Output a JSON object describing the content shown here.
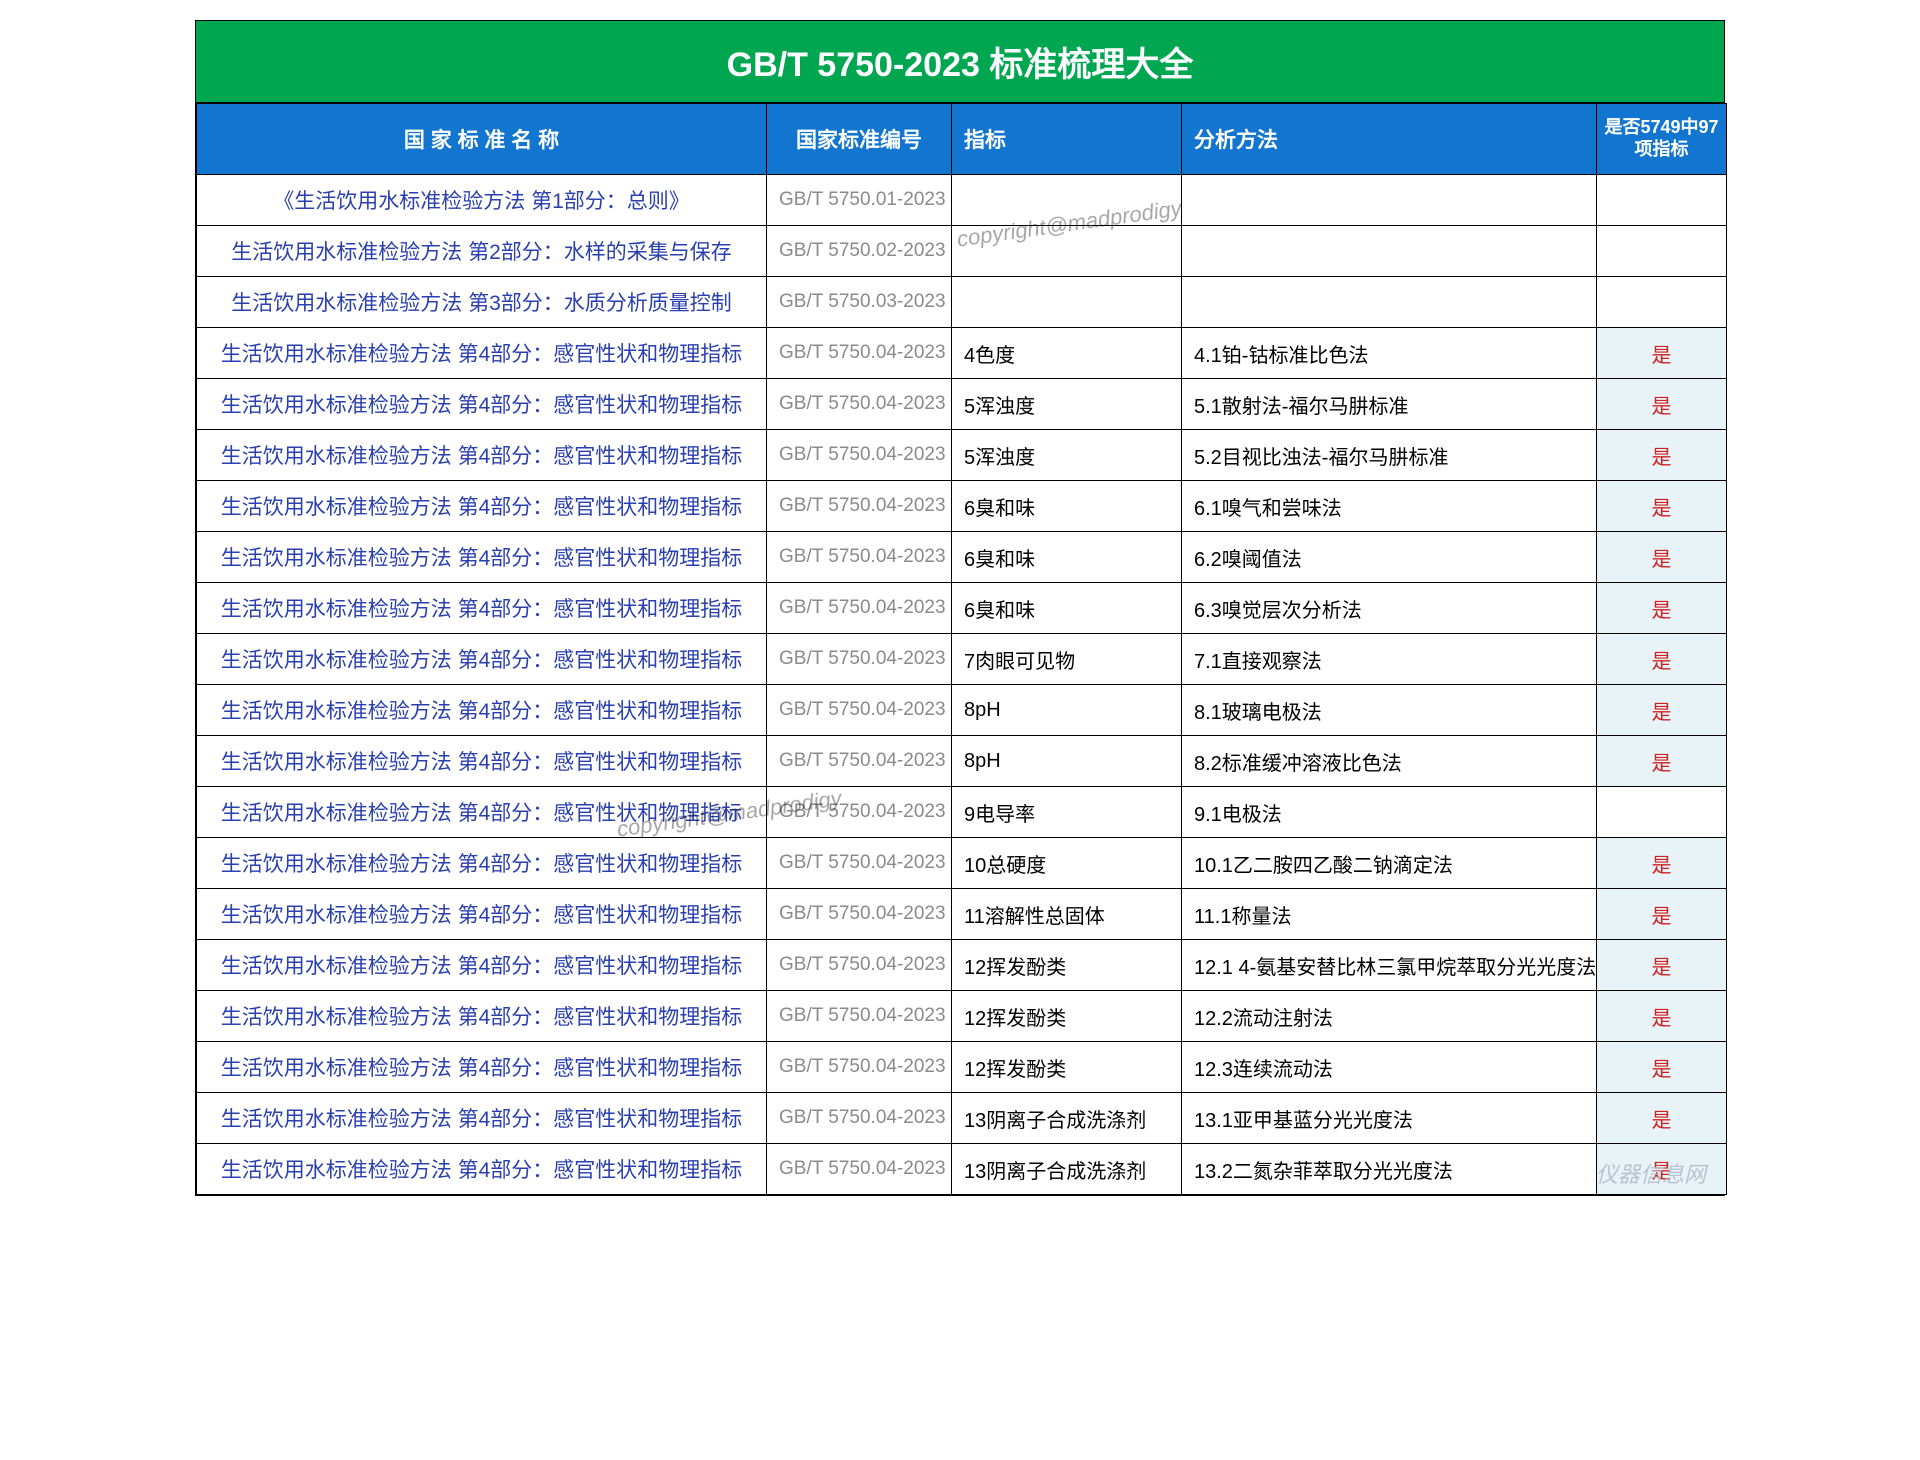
{
  "title": "GB/T 5750-2023  标准梳理大全",
  "watermark": "copyright@madprodigy",
  "brand": "仪器信息网",
  "colors": {
    "title_bg": "#00a650",
    "header_bg": "#1276d0",
    "header_fg": "#ffffff",
    "name_fg": "#2a3fb0",
    "code_fg": "#8a8a8a",
    "flag_bg": "#e8f3f8",
    "flag_fg": "#d02020",
    "border": "#000000"
  },
  "columns": [
    {
      "key": "name",
      "label": "国 家 标 准 名 称",
      "align": "center"
    },
    {
      "key": "code",
      "label": "国家标准编号",
      "align": "center"
    },
    {
      "key": "idx",
      "label": "指标",
      "align": "left"
    },
    {
      "key": "method",
      "label": "分析方法",
      "align": "left"
    },
    {
      "key": "flag",
      "label": "是否5749中97项指标",
      "align": "center"
    }
  ],
  "rows": [
    {
      "name": "《生活饮用水标准检验方法 第1部分：总则》",
      "code": "GB/T 5750.01-2023",
      "idx": "",
      "method": "",
      "flag": ""
    },
    {
      "name": "生活饮用水标准检验方法 第2部分：水样的采集与保存",
      "code": "GB/T 5750.02-2023",
      "idx": "",
      "method": "",
      "flag": ""
    },
    {
      "name": "生活饮用水标准检验方法 第3部分：水质分析质量控制",
      "code": "GB/T 5750.03-2023",
      "idx": "",
      "method": "",
      "flag": ""
    },
    {
      "name": "生活饮用水标准检验方法 第4部分：感官性状和物理指标",
      "code": "GB/T 5750.04-2023",
      "idx": "4色度",
      "method": "4.1铂-钴标准比色法",
      "flag": "是"
    },
    {
      "name": "生活饮用水标准检验方法 第4部分：感官性状和物理指标",
      "code": "GB/T 5750.04-2023",
      "idx": "5浑浊度",
      "method": "5.1散射法-福尔马肼标准",
      "flag": "是"
    },
    {
      "name": "生活饮用水标准检验方法 第4部分：感官性状和物理指标",
      "code": "GB/T 5750.04-2023",
      "idx": "5浑浊度",
      "method": "5.2目视比浊法-福尔马肼标准",
      "flag": "是"
    },
    {
      "name": "生活饮用水标准检验方法 第4部分：感官性状和物理指标",
      "code": "GB/T 5750.04-2023",
      "idx": "6臭和味",
      "method": "6.1嗅气和尝味法",
      "flag": "是"
    },
    {
      "name": "生活饮用水标准检验方法 第4部分：感官性状和物理指标",
      "code": "GB/T 5750.04-2023",
      "idx": "6臭和味",
      "method": "6.2嗅阈值法",
      "flag": "是"
    },
    {
      "name": "生活饮用水标准检验方法 第4部分：感官性状和物理指标",
      "code": "GB/T 5750.04-2023",
      "idx": "6臭和味",
      "method": "6.3嗅觉层次分析法",
      "flag": "是"
    },
    {
      "name": "生活饮用水标准检验方法 第4部分：感官性状和物理指标",
      "code": "GB/T 5750.04-2023",
      "idx": "7肉眼可见物",
      "method": "7.1直接观察法",
      "flag": "是"
    },
    {
      "name": "生活饮用水标准检验方法 第4部分：感官性状和物理指标",
      "code": "GB/T 5750.04-2023",
      "idx": "8pH",
      "method": "8.1玻璃电极法",
      "flag": "是"
    },
    {
      "name": "生活饮用水标准检验方法 第4部分：感官性状和物理指标",
      "code": "GB/T 5750.04-2023",
      "idx": "8pH",
      "method": "8.2标准缓冲溶液比色法",
      "flag": "是"
    },
    {
      "name": "生活饮用水标准检验方法 第4部分：感官性状和物理指标",
      "code": "GB/T 5750.04-2023",
      "idx": "9电导率",
      "method": "9.1电极法",
      "flag": ""
    },
    {
      "name": "生活饮用水标准检验方法 第4部分：感官性状和物理指标",
      "code": "GB/T 5750.04-2023",
      "idx": "10总硬度",
      "method": "10.1乙二胺四乙酸二钠滴定法",
      "flag": "是"
    },
    {
      "name": "生活饮用水标准检验方法 第4部分：感官性状和物理指标",
      "code": "GB/T 5750.04-2023",
      "idx": "11溶解性总固体",
      "method": "11.1称量法",
      "flag": "是"
    },
    {
      "name": "生活饮用水标准检验方法 第4部分：感官性状和物理指标",
      "code": "GB/T 5750.04-2023",
      "idx": "12挥发酚类",
      "method": "12.1 4-氨基安替比林三氯甲烷萃取分光光度法",
      "flag": "是"
    },
    {
      "name": "生活饮用水标准检验方法 第4部分：感官性状和物理指标",
      "code": "GB/T 5750.04-2023",
      "idx": "12挥发酚类",
      "method": "12.2流动注射法",
      "flag": "是"
    },
    {
      "name": "生活饮用水标准检验方法 第4部分：感官性状和物理指标",
      "code": "GB/T 5750.04-2023",
      "idx": "12挥发酚类",
      "method": "12.3连续流动法",
      "flag": "是"
    },
    {
      "name": "生活饮用水标准检验方法 第4部分：感官性状和物理指标",
      "code": "GB/T 5750.04-2023",
      "idx": "13阴离子合成洗涤剂",
      "method": "13.1亚甲基蓝分光光度法",
      "flag": "是"
    },
    {
      "name": "生活饮用水标准检验方法 第4部分：感官性状和物理指标",
      "code": "GB/T 5750.04-2023",
      "idx": "13阴离子合成洗涤剂",
      "method": "13.2二氮杂菲萃取分光光度法",
      "flag": "是"
    }
  ]
}
